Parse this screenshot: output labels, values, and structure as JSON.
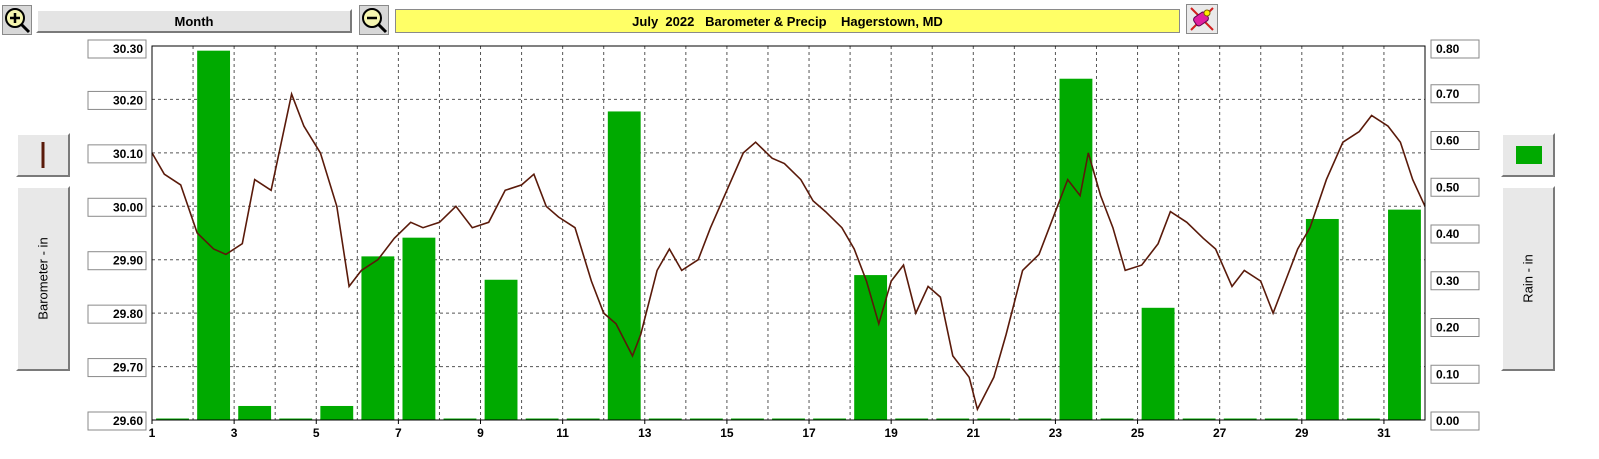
{
  "toolbar": {
    "zoom_in_icon": "magnifier-plus-icon",
    "zoom_out_icon": "magnifier-minus-icon",
    "period_label": "Month",
    "title": "July  2022   Barometer & Precip    Hagerstown, MD",
    "clear_icon": "eraser-icon"
  },
  "colors": {
    "barometer": "#5a1a0a",
    "rain": "#00aa00",
    "title_bg": "#ffff66"
  },
  "chart_data": {
    "type": "bar",
    "title": "July  2022   Barometer & Precip    Hagerstown, MD",
    "x_ticks": [
      "1",
      "3",
      "5",
      "7",
      "9",
      "11",
      "13",
      "15",
      "17",
      "19",
      "21",
      "23",
      "25",
      "27",
      "29",
      "31"
    ],
    "xlim": [
      1,
      32
    ],
    "grid": true,
    "left_axis": {
      "label": "Barometer - in",
      "ticks": [
        "30.30",
        "30.20",
        "30.10",
        "30.00",
        "29.90",
        "29.80",
        "29.70",
        "29.60"
      ],
      "range": [
        29.6,
        30.3
      ]
    },
    "right_axis": {
      "label": "Rain - in",
      "ticks": [
        "0.80",
        "0.70",
        "0.60",
        "0.50",
        "0.40",
        "0.30",
        "0.20",
        "0.10",
        "0.00"
      ],
      "range": [
        0.0,
        0.8
      ]
    },
    "series": [
      {
        "type": "bar",
        "axis": "right",
        "color": "#00aa00",
        "categories": [
          1,
          2,
          3,
          4,
          5,
          6,
          7,
          8,
          9,
          10,
          11,
          12,
          13,
          14,
          15,
          16,
          17,
          18,
          19,
          20,
          21,
          22,
          23,
          24,
          25,
          26,
          27,
          28,
          29,
          30,
          31
        ],
        "values": [
          0,
          0.79,
          0.03,
          0,
          0.03,
          0.35,
          0.39,
          0,
          0.3,
          0,
          0,
          0.66,
          0,
          0,
          0,
          0,
          0,
          0.31,
          0,
          0,
          0,
          0,
          0.73,
          0,
          0.24,
          0,
          0,
          0,
          0.43,
          0,
          0.45
        ]
      },
      {
        "type": "line",
        "axis": "left",
        "color": "#5a1a0a",
        "x": [
          1,
          1.3,
          1.7,
          2.1,
          2.5,
          2.8,
          3.2,
          3.5,
          3.9,
          4.4,
          4.7,
          5.1,
          5.5,
          5.8,
          6.1,
          6.5,
          6.9,
          7.3,
          7.6,
          8.0,
          8.4,
          8.8,
          9.2,
          9.6,
          10.0,
          10.3,
          10.6,
          10.9,
          11.3,
          11.7,
          12.0,
          12.3,
          12.7,
          12.9,
          13.3,
          13.6,
          13.9,
          14.3,
          14.6,
          15.0,
          15.4,
          15.7,
          16.1,
          16.4,
          16.8,
          17.1,
          17.4,
          17.8,
          18.1,
          18.4,
          18.7,
          19.0,
          19.3,
          19.6,
          19.9,
          20.2,
          20.5,
          20.9,
          21.1,
          21.5,
          21.8,
          22.2,
          22.6,
          22.9,
          23.3,
          23.6,
          23.8,
          24.1,
          24.4,
          24.7,
          25.1,
          25.5,
          25.8,
          26.2,
          26.6,
          26.9,
          27.3,
          27.6,
          28.0,
          28.3,
          28.6,
          28.9,
          29.2,
          29.6,
          30.0,
          30.4,
          30.7,
          31.1,
          31.4,
          31.7,
          32.0
        ],
        "values": [
          30.1,
          30.06,
          30.04,
          29.95,
          29.92,
          29.91,
          29.93,
          30.05,
          30.03,
          30.21,
          30.15,
          30.1,
          30.0,
          29.85,
          29.88,
          29.9,
          29.94,
          29.97,
          29.96,
          29.97,
          30.0,
          29.96,
          29.97,
          30.03,
          30.04,
          30.06,
          30.0,
          29.98,
          29.96,
          29.86,
          29.8,
          29.78,
          29.72,
          29.76,
          29.88,
          29.92,
          29.88,
          29.9,
          29.96,
          30.03,
          30.1,
          30.12,
          30.09,
          30.08,
          30.05,
          30.01,
          29.99,
          29.96,
          29.92,
          29.86,
          29.78,
          29.86,
          29.89,
          29.8,
          29.85,
          29.83,
          29.72,
          29.68,
          29.62,
          29.68,
          29.76,
          29.88,
          29.91,
          29.97,
          30.05,
          30.02,
          30.1,
          30.02,
          29.96,
          29.88,
          29.89,
          29.93,
          29.99,
          29.97,
          29.94,
          29.92,
          29.85,
          29.88,
          29.86,
          29.8,
          29.86,
          29.92,
          29.96,
          30.05,
          30.12,
          30.14,
          30.17,
          30.15,
          30.12,
          30.05,
          30.0
        ]
      }
    ]
  }
}
